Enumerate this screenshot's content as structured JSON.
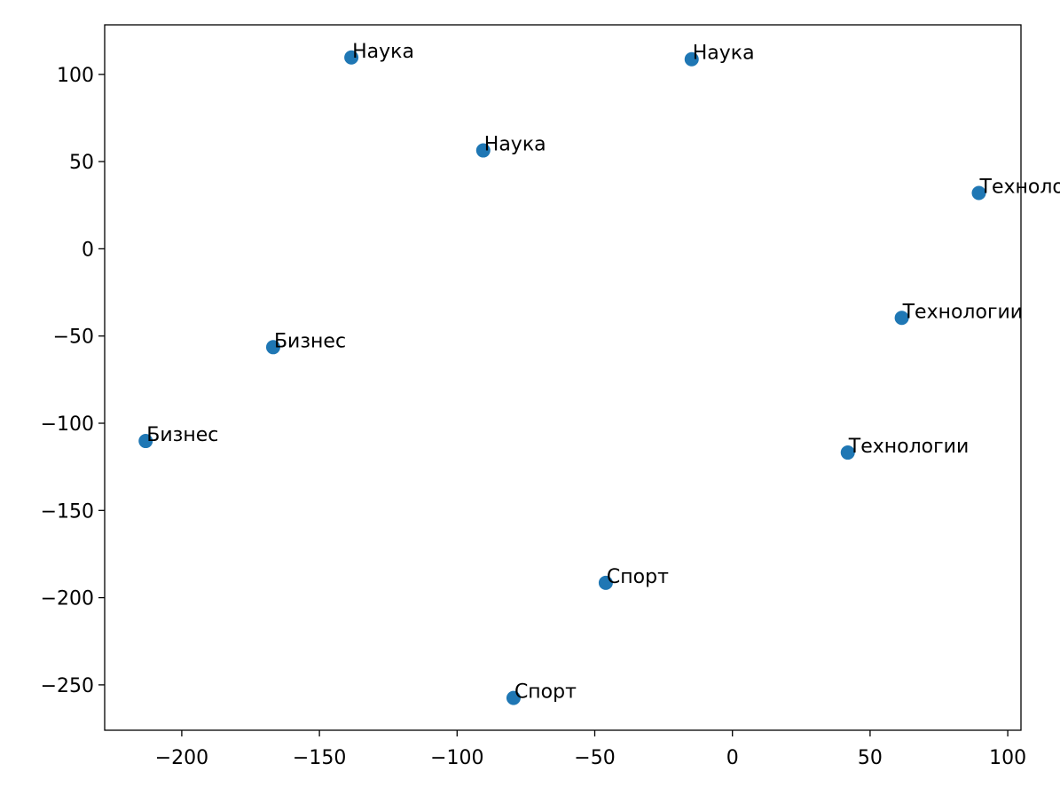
{
  "chart_data": {
    "type": "scatter",
    "color": "#1f77b4",
    "x": [
      -138.4,
      -14.8,
      -90.5,
      89.5,
      61.5,
      41.9,
      -166.8,
      -213.1,
      -46,
      -79.5
    ],
    "y": [
      109.7,
      108.7,
      56.4,
      32,
      -39.6,
      -116.8,
      -56.4,
      -110.2,
      -191.5,
      -257.5
    ],
    "labels": [
      "Наука",
      "Наука",
      "Наука",
      "Технологии",
      "Технологии",
      "Технологии",
      "Бизнес",
      "Бизнес",
      "Спорт",
      "Спорт"
    ],
    "xlim": [
      -228,
      104.8
    ],
    "ylim": [
      -276,
      128.4
    ],
    "xticks": [
      {
        "value": -200,
        "label": "−200"
      },
      {
        "value": -150,
        "label": "−150"
      },
      {
        "value": -100,
        "label": "−100"
      },
      {
        "value": -50,
        "label": "−50"
      },
      0,
      50,
      100
    ],
    "yticks": [
      {
        "value": -250,
        "label": "−250"
      },
      {
        "value": -200,
        "label": "−200"
      },
      {
        "value": -150,
        "label": "−150"
      },
      {
        "value": -100,
        "label": "−100"
      },
      {
        "value": -50,
        "label": "−50"
      },
      0,
      50,
      100
    ]
  }
}
